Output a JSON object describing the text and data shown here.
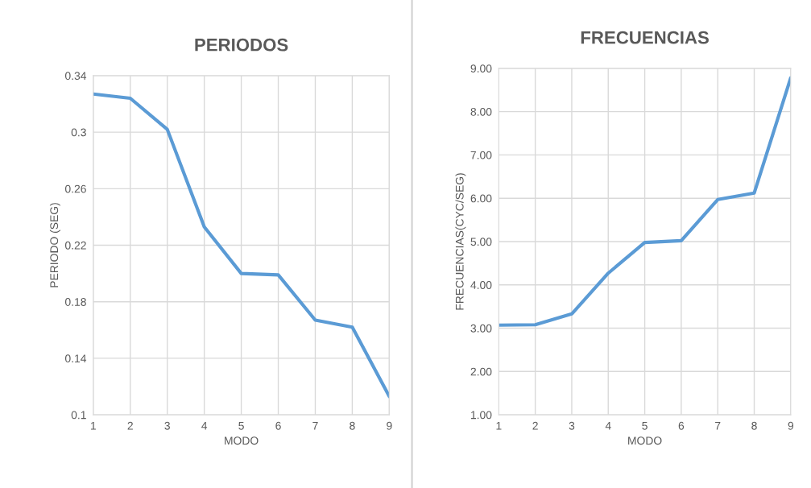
{
  "chart_data": [
    {
      "type": "line",
      "title": "PERIODOS",
      "xlabel": "MODO",
      "ylabel": "PERIODO (SEG)",
      "x": [
        1,
        2,
        3,
        4,
        5,
        6,
        7,
        8,
        9
      ],
      "series": [
        {
          "color": "#5b9bd5",
          "values": [
            0.327,
            0.324,
            0.302,
            0.233,
            0.2,
            0.199,
            0.167,
            0.162,
            0.113
          ]
        }
      ],
      "xlim": [
        1,
        9
      ],
      "xticks": [
        1,
        2,
        3,
        4,
        5,
        6,
        7,
        8,
        9
      ],
      "ylim": [
        0.1,
        0.34
      ],
      "yticks": [
        0.1,
        0.14,
        0.18,
        0.22,
        0.26,
        0.3,
        0.34
      ],
      "grid": true
    },
    {
      "type": "line",
      "title": "FRECUENCIAS",
      "xlabel": "MODO",
      "ylabel": "FRECUENCIAS(CYC/SEG)",
      "x": [
        1,
        2,
        3,
        4,
        5,
        6,
        7,
        8,
        9
      ],
      "series": [
        {
          "color": "#5b9bd5",
          "values": [
            3.07,
            3.08,
            3.33,
            4.27,
            4.98,
            5.02,
            5.97,
            6.12,
            8.78
          ]
        }
      ],
      "xlim": [
        1,
        9
      ],
      "xticks": [
        1,
        2,
        3,
        4,
        5,
        6,
        7,
        8,
        9
      ],
      "ylim": [
        1,
        9
      ],
      "yticks": [
        {
          "value": 1,
          "label": "1.00"
        },
        {
          "value": 2,
          "label": "2.00"
        },
        {
          "value": 3,
          "label": "3.00"
        },
        {
          "value": 4,
          "label": "4.00"
        },
        {
          "value": 5,
          "label": "5.00"
        },
        {
          "value": 6,
          "label": "6.00"
        },
        {
          "value": 7,
          "label": "7.00"
        },
        {
          "value": 8,
          "label": "8.00"
        },
        {
          "value": 9,
          "label": "9.00"
        }
      ],
      "grid": true
    }
  ]
}
